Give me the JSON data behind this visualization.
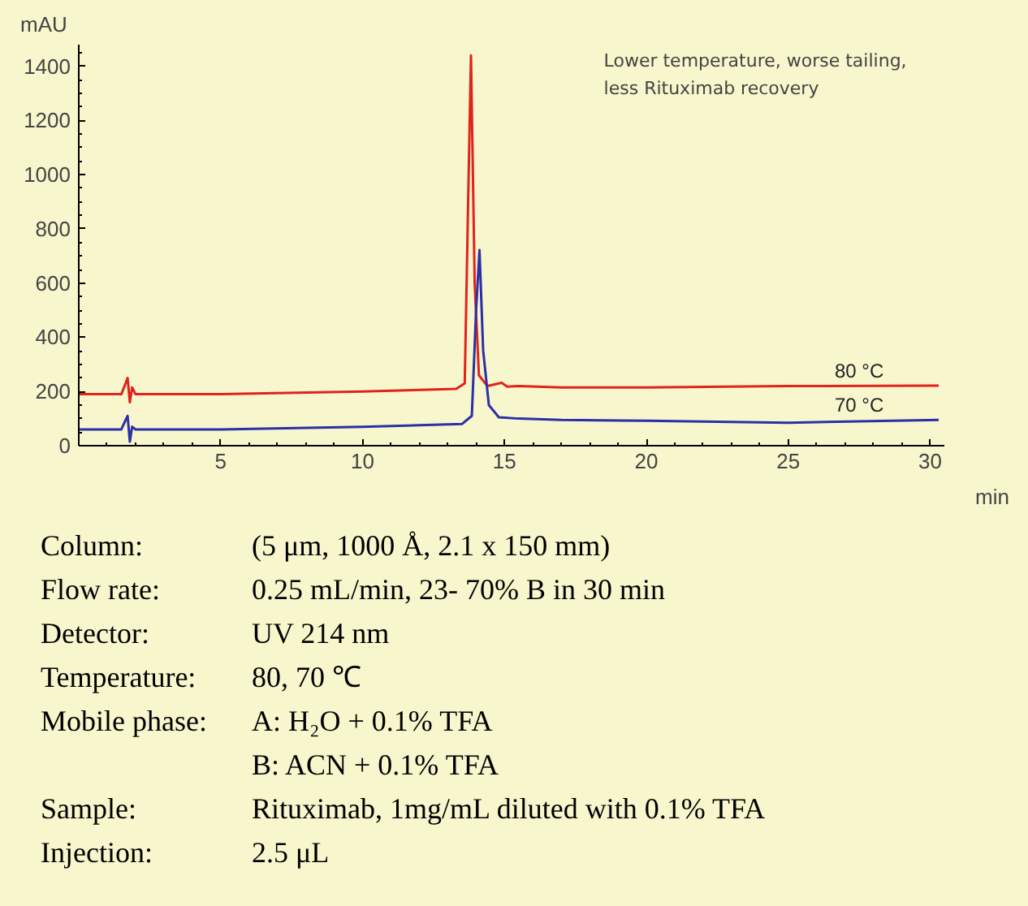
{
  "chart_data": {
    "type": "line",
    "xlabel": "min",
    "ylabel": "mAU",
    "xlim": [
      0,
      30.5
    ],
    "ylim": [
      0,
      1480
    ],
    "xticks": [
      5,
      10,
      15,
      20,
      25,
      30
    ],
    "yticks": [
      0,
      200,
      400,
      600,
      800,
      1000,
      1200,
      1400
    ],
    "grid": false,
    "marker": "none",
    "line_style": "solid",
    "series": [
      {
        "name": "80 °C",
        "color": "#e0231c",
        "x": [
          0,
          1.5,
          1.65,
          1.72,
          1.8,
          1.88,
          2.0,
          5,
          10,
          13.3,
          13.6,
          13.72,
          13.82,
          13.95,
          14.1,
          14.4,
          14.9,
          15.1,
          15.5,
          17,
          20,
          25,
          30.3
        ],
        "values": [
          190,
          190,
          230,
          250,
          160,
          215,
          190,
          190,
          200,
          210,
          230,
          900,
          1440,
          600,
          260,
          220,
          232,
          218,
          220,
          215,
          215,
          220,
          222
        ]
      },
      {
        "name": "70 °C",
        "color": "#2b2fa8",
        "x": [
          0,
          1.5,
          1.65,
          1.72,
          1.8,
          1.88,
          2.0,
          5,
          10,
          13.5,
          13.85,
          14.0,
          14.12,
          14.25,
          14.45,
          14.8,
          15.5,
          17,
          20,
          25,
          30.3
        ],
        "values": [
          60,
          60,
          95,
          110,
          15,
          70,
          60,
          60,
          70,
          80,
          110,
          500,
          722,
          350,
          150,
          105,
          100,
          95,
          92,
          85,
          95
        ]
      }
    ],
    "annotations": [
      "Lower temperature, worse tailing, less Rituximab recovery",
      "Column:",
      "(5 μm, 1000 Å, 2.1 x 150 mm)",
      "Flow rate:",
      "0.25 mL/min, 23- 70% B in 30 min",
      "Detector:",
      "UV 214 nm",
      "Temperature:",
      "80, 70 ℃",
      "Mobile phase:",
      "A: H₂O + 0.1% TFA",
      null,
      "B: ACN + 0.1% TFA",
      "Sample:",
      "Rituximab, 1mg/mL diluted with 0.1% TFA",
      "Injection:",
      "2.5 μL"
    ]
  }
}
